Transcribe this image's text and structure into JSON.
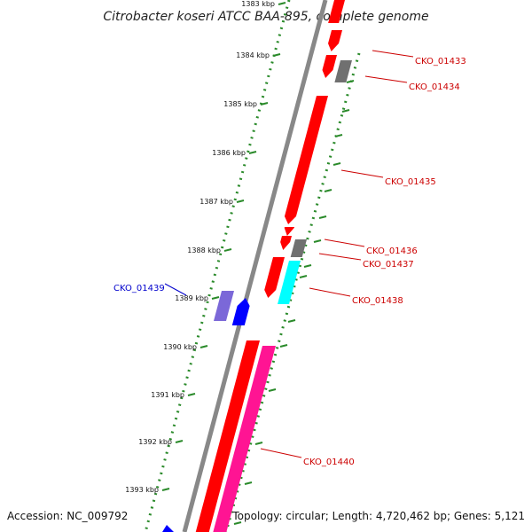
{
  "title": "Citrobacter koseri ATCC BAA-895, complete genome",
  "footer": {
    "accession": "Accession: NC_009792",
    "topology": "Topology: circular; Length: 4,720,462 bp; Genes: 5,121"
  },
  "ticks": [
    {
      "label": "1383 kbp"
    },
    {
      "label": "1384 kbp"
    },
    {
      "label": "1385 kbp"
    },
    {
      "label": "1386 kbp"
    },
    {
      "label": "1387 kbp"
    },
    {
      "label": "1388 kbp"
    },
    {
      "label": "1389 kbp"
    },
    {
      "label": "1390 kbp"
    },
    {
      "label": "1391 kbp"
    },
    {
      "label": "1392 kbp"
    },
    {
      "label": "1393 kbp"
    }
  ],
  "gene_labels": [
    {
      "text": "CKO_01433",
      "color": "#cc0000"
    },
    {
      "text": "CKO_01434",
      "color": "#cc0000"
    },
    {
      "text": "CKO_01435",
      "color": "#cc0000"
    },
    {
      "text": "CKO_01436",
      "color": "#cc0000"
    },
    {
      "text": "CKO_01437",
      "color": "#cc0000"
    },
    {
      "text": "CKO_01438",
      "color": "#cc0000"
    },
    {
      "text": "CKO_01439",
      "color": "#0000cc"
    },
    {
      "text": "CKO_01440",
      "color": "#cc0000"
    }
  ],
  "colors": {
    "backbone": "#888888",
    "tick_ring": "#2a8a2a",
    "gene_red": "#ff0000",
    "gene_gray": "#707070",
    "gene_cyan": "#00ffff",
    "gene_pink": "#ff1493",
    "gene_blue": "#0000ff",
    "gene_violet": "#7b68d8"
  }
}
